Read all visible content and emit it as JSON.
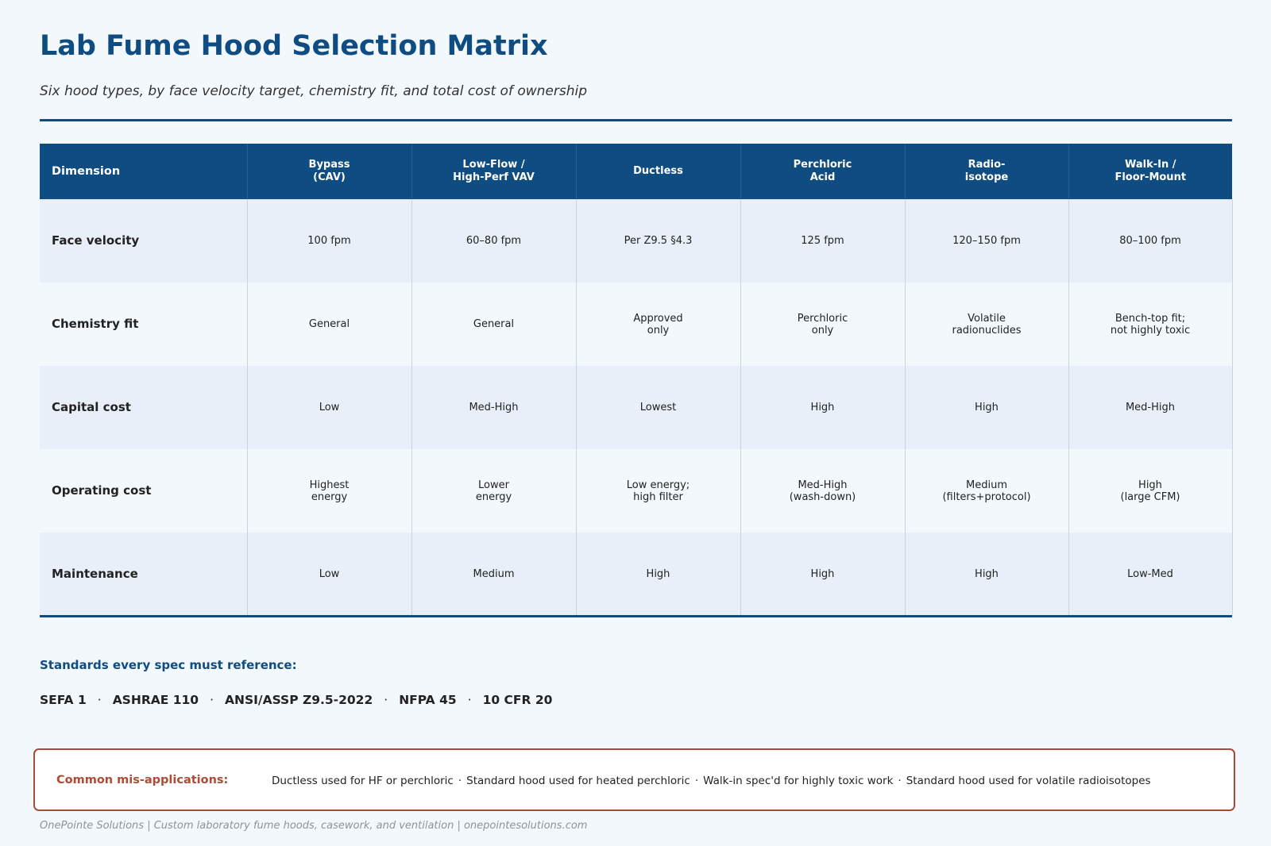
{
  "title": "Lab Fume Hood Selection Matrix",
  "subtitle": "Six hood types, by face velocity target, chemistry fit, and total cost of ownership",
  "table": {
    "dimension_header": "Dimension",
    "columns": [
      "Bypass\n(CAV)",
      "Low-Flow /\nHigh-Perf VAV",
      "Ductless",
      "Perchloric\nAcid",
      "Radio-\nisotope",
      "Walk-In /\nFloor-Mount"
    ],
    "rows": [
      {
        "dimension": "Face velocity",
        "cells": [
          "100 fpm",
          "60–80 fpm",
          "Per Z9.5 §4.3",
          "125 fpm",
          "120–150 fpm",
          "80–100 fpm"
        ]
      },
      {
        "dimension": "Chemistry fit",
        "cells": [
          "General",
          "General",
          "Approved\nonly",
          "Perchloric\nonly",
          "Volatile\nradionuclides",
          "Bench-top fit;\nnot highly toxic"
        ]
      },
      {
        "dimension": "Capital cost",
        "cells": [
          "Low",
          "Med-High",
          "Lowest",
          "High",
          "High",
          "Med-High"
        ]
      },
      {
        "dimension": "Operating cost",
        "cells": [
          "Highest\nenergy",
          "Lower\nenergy",
          "Low energy;\nhigh filter",
          "Med-High\n(wash-down)",
          "Medium\n(filters+protocol)",
          "High\n(large CFM)"
        ]
      },
      {
        "dimension": "Maintenance",
        "cells": [
          "Low",
          "Medium",
          "High",
          "High",
          "High",
          "Low-Med"
        ]
      }
    ]
  },
  "standards": {
    "heading": "Standards every spec must reference:",
    "separator": "·",
    "items": [
      "SEFA 1",
      "ASHRAE 110",
      "ANSI/ASSP Z9.5-2022",
      "NFPA 45",
      "10 CFR 20"
    ]
  },
  "callout": {
    "label": "Common mis-applications:",
    "separator": "·",
    "items": [
      "Ductless used for HF or perchloric",
      "Standard hood used for heated perchloric",
      "Walk-in spec'd for highly toxic work",
      "Standard hood used for volatile radioisotopes"
    ]
  },
  "footer": "OnePointe Solutions  |  Custom laboratory fume hoods, casework, and ventilation  |  onepointesolutions.com",
  "colors": {
    "primary": "#0f4c81",
    "accent": "#b04b35",
    "background": "#f3f8fd",
    "row_alt": "#e9eff8"
  }
}
